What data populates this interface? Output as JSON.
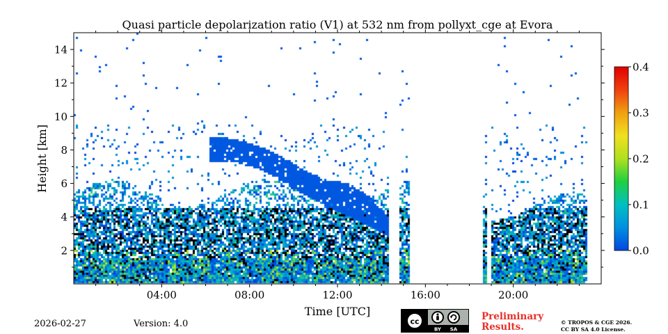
{
  "chart_data": {
    "type": "heatmap",
    "title": "Quasi particle depolarization ratio (V1) at 532 nm from pollyxt_cge at Evora",
    "xlabel": "Time [UTC]",
    "ylabel": "Height [km]",
    "xlim_hours": [
      0,
      24
    ],
    "ylim_km": [
      0,
      15
    ],
    "x_ticks": [
      {
        "hour": 4,
        "label": "04:00"
      },
      {
        "hour": 8,
        "label": "08:00"
      },
      {
        "hour": 12,
        "label": "12:00"
      },
      {
        "hour": 16,
        "label": "16:00"
      },
      {
        "hour": 20,
        "label": "20:00"
      }
    ],
    "y_ticks": [
      {
        "km": 2,
        "label": "2"
      },
      {
        "km": 4,
        "label": "4"
      },
      {
        "km": 6,
        "label": "6"
      },
      {
        "km": 8,
        "label": "8"
      },
      {
        "km": 10,
        "label": "10"
      },
      {
        "km": 12,
        "label": "12"
      },
      {
        "km": 14,
        "label": "14"
      }
    ],
    "colorbar": {
      "min": 0.0,
      "max": 0.4,
      "ticks": [
        {
          "value": 0.0,
          "label": "0.0"
        },
        {
          "value": 0.1,
          "label": "0.1"
        },
        {
          "value": 0.2,
          "label": "0.2"
        },
        {
          "value": 0.3,
          "label": "0.3"
        },
        {
          "value": 0.4,
          "label": "0.4"
        }
      ],
      "colors": [
        "#0047e0",
        "#0090e0",
        "#00c0c0",
        "#20d040",
        "#b0e020",
        "#f0e020",
        "#f0a010",
        "#f04010",
        "#e00000"
      ]
    },
    "features": {
      "data_gaps_hours": [
        [
          14.35,
          14.85
        ],
        [
          15.3,
          18.7
        ],
        [
          18.9,
          19.05
        ],
        [
          23.4,
          24
        ]
      ],
      "cirrus_layer": [
        {
          "hour": 6.5,
          "base_km": 7.3,
          "top_km": 8.8
        },
        {
          "hour": 7.5,
          "base_km": 7.2,
          "top_km": 8.6
        },
        {
          "hour": 8.5,
          "base_km": 6.8,
          "top_km": 8.2
        },
        {
          "hour": 9.5,
          "base_km": 6.1,
          "top_km": 7.6
        },
        {
          "hour": 10.5,
          "base_km": 5.3,
          "top_km": 6.8
        },
        {
          "hour": 11.5,
          "base_km": 4.6,
          "top_km": 6.2
        },
        {
          "hour": 12.5,
          "base_km": 4.0,
          "top_km": 6.0
        },
        {
          "hour": 13.5,
          "base_km": 3.4,
          "top_km": 5.2
        },
        {
          "hour": 14.3,
          "base_km": 2.8,
          "top_km": 4.0
        }
      ],
      "boundary_layer_top_km": 6.0
    }
  },
  "footer": {
    "date": "2026-02-27",
    "version": "Version: 4.0",
    "cc_by": "BY",
    "cc_sa": "SA",
    "preliminary": [
      "Preliminary",
      "Results."
    ],
    "copyright": [
      "© TROPOS & CGE 2026.",
      "CC BY SA 4.0 License."
    ]
  }
}
